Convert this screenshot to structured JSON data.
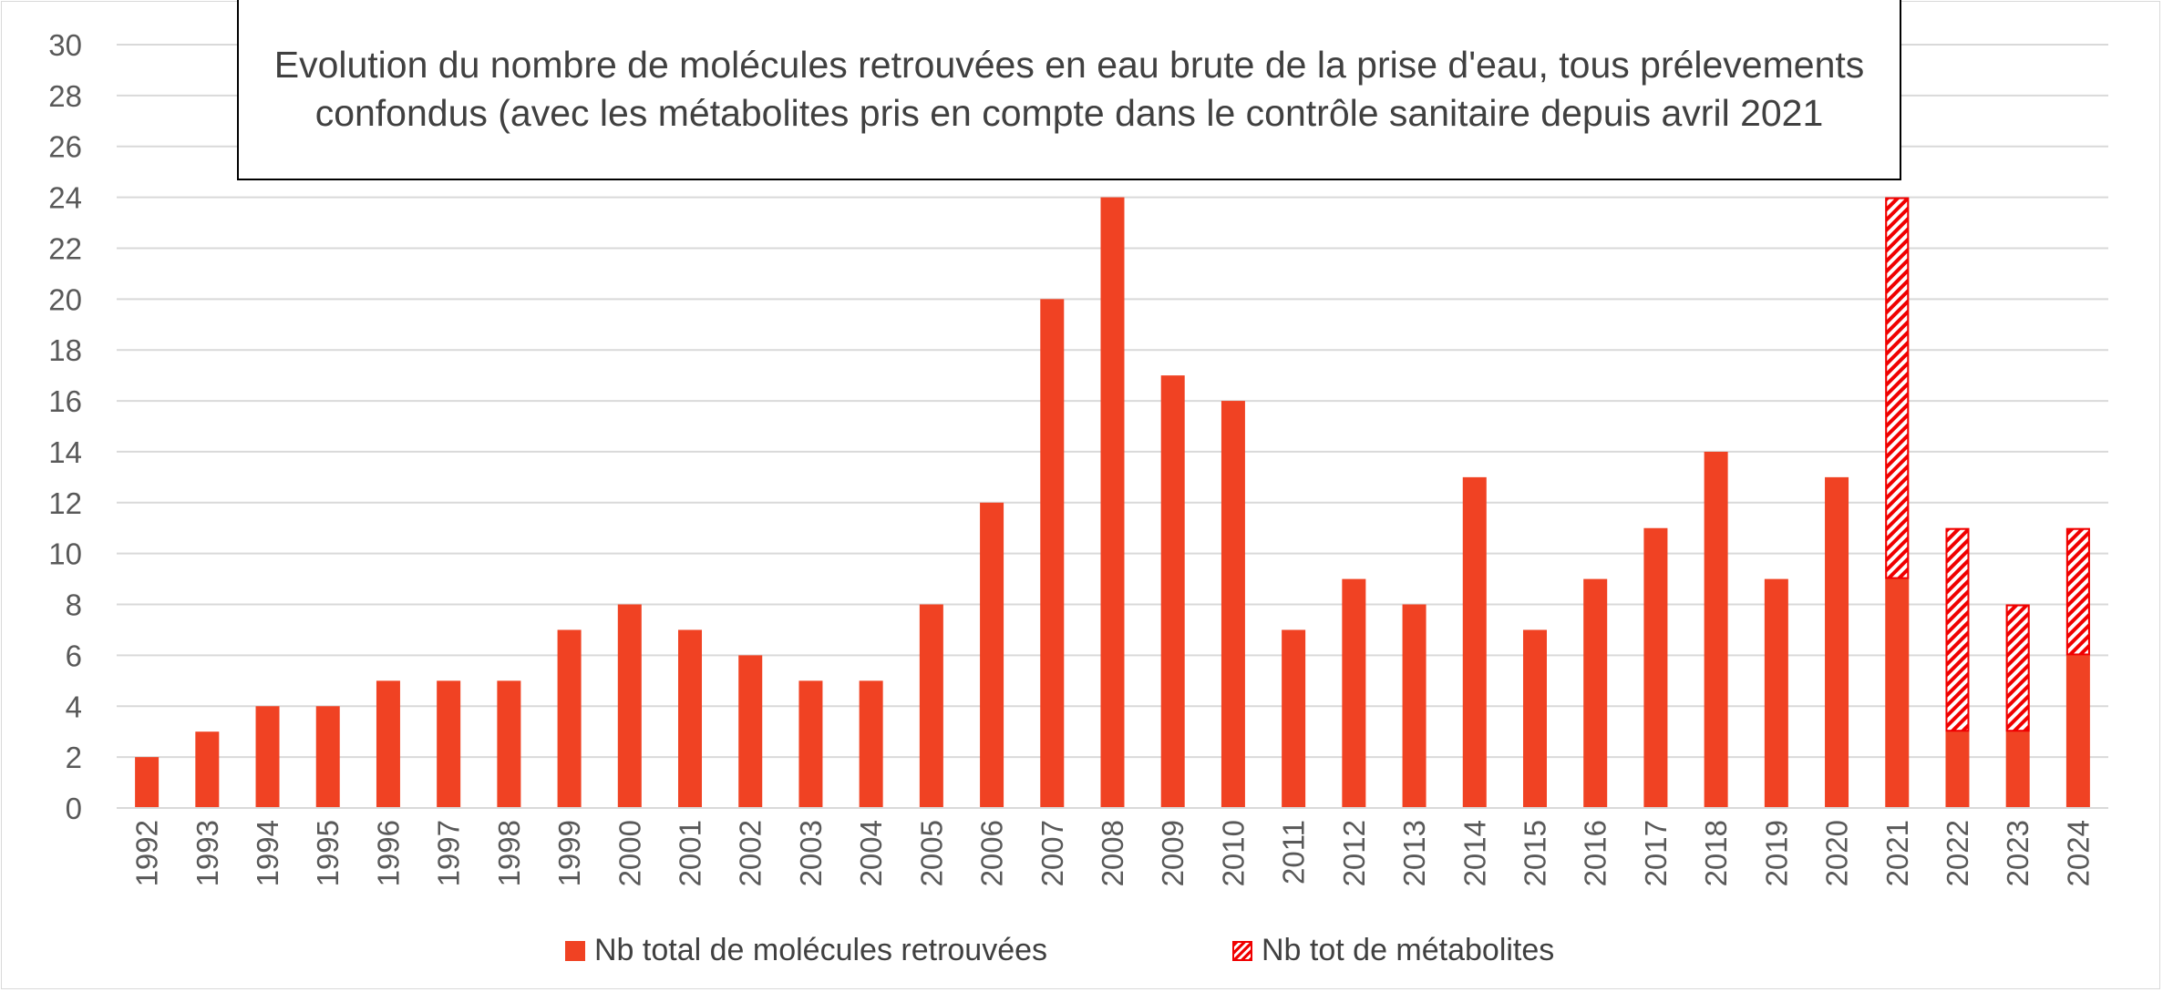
{
  "chart_data": {
    "type": "bar",
    "title": "Evolution du nombre de molécules retrouvées en eau brute de la prise d'eau, tous prélevements confondus (avec les métabolites pris en compte dans le contrôle sanitaire depuis avril 2021",
    "xlabel": "",
    "ylabel": "",
    "ylim": [
      0,
      30
    ],
    "yticks": [
      "0",
      "2",
      "4",
      "6",
      "8",
      "10",
      "12",
      "14",
      "16",
      "18",
      "20",
      "22",
      "24",
      "26",
      "28",
      "30"
    ],
    "grid": true,
    "legend_position": "bottom",
    "categories": [
      "1992",
      "1993",
      "1994",
      "1995",
      "1996",
      "1997",
      "1998",
      "1999",
      "2000",
      "2001",
      "2002",
      "2003",
      "2004",
      "2005",
      "2006",
      "2007",
      "2008",
      "2009",
      "2010",
      "2011",
      "2012",
      "2013",
      "2014",
      "2015",
      "2016",
      "2017",
      "2018",
      "2019",
      "2020",
      "2021",
      "2022",
      "2023",
      "2024"
    ],
    "series": [
      {
        "name": "Nb total de molécules retrouvées",
        "color": "#f04223",
        "values": [
          2,
          3,
          4,
          4,
          5,
          5,
          5,
          7,
          8,
          7,
          6,
          5,
          5,
          8,
          12,
          20,
          24,
          17,
          16,
          7,
          9,
          8,
          13,
          7,
          9,
          11,
          14,
          9,
          13,
          24,
          11,
          8,
          11
        ]
      },
      {
        "name": "Nb tot de métabolites",
        "color": "#f00000",
        "pattern": "diagonal-hatch",
        "ranges": [
          {
            "category": "2021",
            "from": 9,
            "to": 24
          },
          {
            "category": "2022",
            "from": 3,
            "to": 11
          },
          {
            "category": "2023",
            "from": 3,
            "to": 8
          },
          {
            "category": "2024",
            "from": 6,
            "to": 11
          }
        ]
      }
    ]
  }
}
